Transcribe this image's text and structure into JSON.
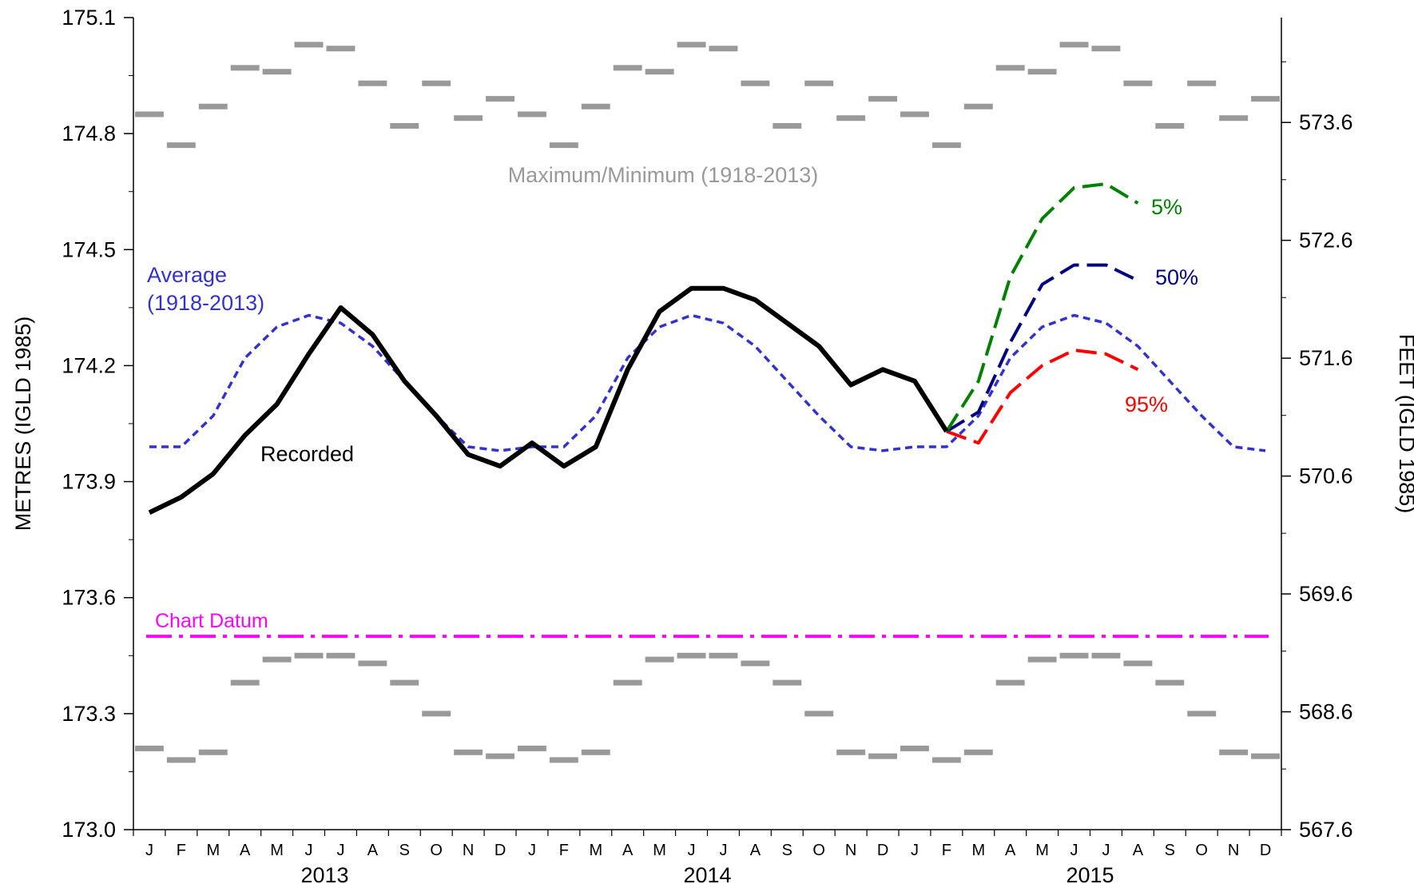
{
  "chart_data": {
    "type": "line",
    "ylabel_left": "METRES (IGLD 1985)",
    "ylabel_right": "FEET (IGLD 1985)",
    "ylim": [
      173.0,
      175.1
    ],
    "y_ticks": [
      "173.0",
      "173.3",
      "173.6",
      "173.9",
      "174.2",
      "174.5",
      "174.8",
      "175.1"
    ],
    "y2_ticks": [
      "567.6",
      "568.6",
      "569.6",
      "570.6",
      "571.6",
      "572.6",
      "573.6"
    ],
    "y2_tick_values_m": [
      173.0,
      173.3048,
      173.6096,
      173.9144,
      174.2192,
      174.524,
      174.8288
    ],
    "months": [
      "J",
      "F",
      "M",
      "A",
      "M",
      "J",
      "J",
      "A",
      "S",
      "O",
      "N",
      "D",
      "J",
      "F",
      "M",
      "A",
      "M",
      "J",
      "J",
      "A",
      "S",
      "O",
      "N",
      "D",
      "J",
      "F",
      "M",
      "A",
      "M",
      "J",
      "J",
      "A",
      "S",
      "O",
      "N",
      "D"
    ],
    "years": [
      "2013",
      "2014",
      "2015"
    ],
    "grid": false,
    "annotations": {
      "maxmin": "Maximum/Minimum (1918-2013)",
      "average_line1": "Average",
      "average_line2": "(1918-2013)",
      "recorded": "Recorded",
      "chart_datum": "Chart Datum",
      "p5": "5%",
      "p50": "50%",
      "p95": "95%"
    },
    "colors": {
      "recorded": "#000000",
      "average": "#3333cc",
      "maxmin": "#999999",
      "chart_datum": "#ff00ff",
      "p5": "#008000",
      "p50": "#000080",
      "p95": "#ff0000"
    },
    "series": [
      {
        "name": "Recorded",
        "x": [
          1,
          2,
          3,
          4,
          5,
          6,
          7,
          8,
          9,
          10,
          11,
          12,
          13,
          14,
          15,
          16,
          17,
          18,
          19,
          20,
          21,
          22,
          23,
          24,
          25,
          26
        ],
        "values": [
          173.82,
          173.86,
          173.92,
          174.02,
          174.1,
          174.23,
          174.35,
          174.28,
          174.16,
          174.07,
          173.97,
          173.94,
          174.0,
          173.94,
          173.99,
          174.19,
          174.34,
          174.4,
          174.4,
          174.37,
          174.31,
          174.25,
          174.15,
          174.19,
          174.16,
          174.03
        ]
      },
      {
        "name": "Average (1918-2013)",
        "x": [
          1,
          2,
          3,
          4,
          5,
          6,
          7,
          8,
          9,
          10,
          11,
          12,
          13,
          14,
          15,
          16,
          17,
          18,
          19,
          20,
          21,
          22,
          23,
          24,
          25,
          26,
          27,
          28,
          29,
          30,
          31,
          32,
          33,
          34,
          35,
          36
        ],
        "values": [
          173.99,
          173.99,
          174.07,
          174.22,
          174.3,
          174.33,
          174.31,
          174.25,
          174.16,
          174.07,
          173.99,
          173.98,
          173.99,
          173.99,
          174.07,
          174.22,
          174.3,
          174.33,
          174.31,
          174.25,
          174.16,
          174.07,
          173.99,
          173.98,
          173.99,
          173.99,
          174.07,
          174.22,
          174.3,
          174.33,
          174.31,
          174.25,
          174.16,
          174.07,
          173.99,
          173.98
        ]
      },
      {
        "name": "5%",
        "x": [
          26,
          27,
          28,
          29,
          30,
          31,
          32
        ],
        "values": [
          174.03,
          174.16,
          174.43,
          174.58,
          174.66,
          174.67,
          174.62
        ]
      },
      {
        "name": "50%",
        "x": [
          26,
          27,
          28,
          29,
          30,
          31,
          32
        ],
        "values": [
          174.03,
          174.08,
          174.26,
          174.41,
          174.46,
          174.46,
          174.42
        ]
      },
      {
        "name": "95%",
        "x": [
          26,
          27,
          28,
          29,
          30,
          31,
          32
        ],
        "values": [
          174.03,
          174.0,
          174.13,
          174.2,
          174.24,
          174.23,
          174.19
        ]
      }
    ],
    "maximum_1918_2013": [
      174.85,
      174.77,
      174.87,
      174.97,
      174.96,
      175.03,
      175.02,
      174.93,
      174.82,
      174.93,
      174.84,
      174.89,
      174.85,
      174.77,
      174.87,
      174.97,
      174.96,
      175.03,
      175.02,
      174.93,
      174.82,
      174.93,
      174.84,
      174.89,
      174.85,
      174.77,
      174.87,
      174.97,
      174.96,
      175.03,
      175.02,
      174.93,
      174.82,
      174.93,
      174.84,
      174.89
    ],
    "minimum_1918_2013": [
      173.21,
      173.18,
      173.2,
      173.38,
      173.44,
      173.45,
      173.45,
      173.43,
      173.38,
      173.3,
      173.2,
      173.19,
      173.21,
      173.18,
      173.2,
      173.38,
      173.44,
      173.45,
      173.45,
      173.43,
      173.38,
      173.3,
      173.2,
      173.19,
      173.21,
      173.18,
      173.2,
      173.38,
      173.44,
      173.45,
      173.45,
      173.43,
      173.38,
      173.3,
      173.2,
      173.19
    ],
    "chart_datum_value": 173.5
  }
}
